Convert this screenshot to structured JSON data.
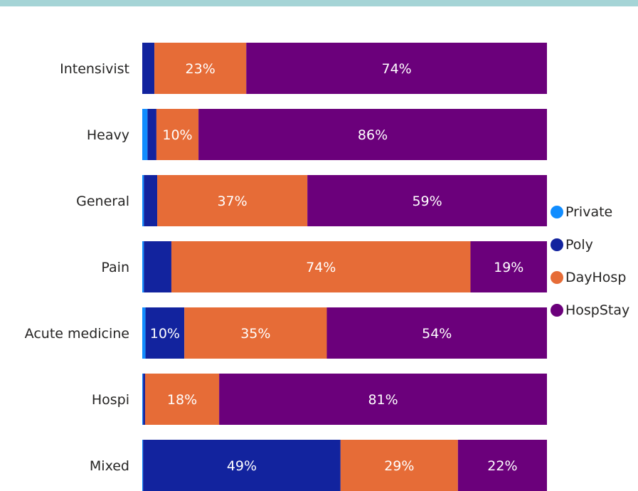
{
  "chart_data": {
    "type": "bar",
    "orientation": "horizontal",
    "stacked": "100%",
    "categories": [
      "Intensivist",
      "Heavy",
      "General",
      "Pain",
      "Acute medicine",
      "Hospi",
      "Mixed"
    ],
    "series": [
      {
        "name": "Private",
        "color": "#118dff",
        "values": [
          0.0,
          1.3,
          0.4,
          0.4,
          0.8,
          0.2,
          0.2
        ]
      },
      {
        "name": "Poly",
        "color": "#12239e",
        "values": [
          3.0,
          2.2,
          3.3,
          6.8,
          9.6,
          0.5,
          48.8
        ]
      },
      {
        "name": "DayHosp",
        "color": "#e66c37",
        "values": [
          22.7,
          10.4,
          37.1,
          73.9,
          35.2,
          18.3,
          29.0
        ]
      },
      {
        "name": "HospStay",
        "color": "#6b007b",
        "values": [
          74.3,
          86.1,
          59.2,
          18.9,
          54.4,
          81.0,
          22.0
        ]
      }
    ],
    "data_labels": [
      [
        "",
        "",
        "23%",
        "74%"
      ],
      [
        "",
        "",
        "10%",
        "86%"
      ],
      [
        "",
        "",
        "37%",
        "59%"
      ],
      [
        "",
        "",
        "74%",
        "19%"
      ],
      [
        "",
        "10%",
        "35%",
        "54%"
      ],
      [
        "",
        "",
        "18%",
        "81%"
      ],
      [
        "",
        "49%",
        "29%",
        "22%"
      ]
    ],
    "xlim": [
      0,
      100
    ],
    "legend_position": "right",
    "grid": false
  },
  "header": {
    "band_color": "#a5d4d6"
  }
}
